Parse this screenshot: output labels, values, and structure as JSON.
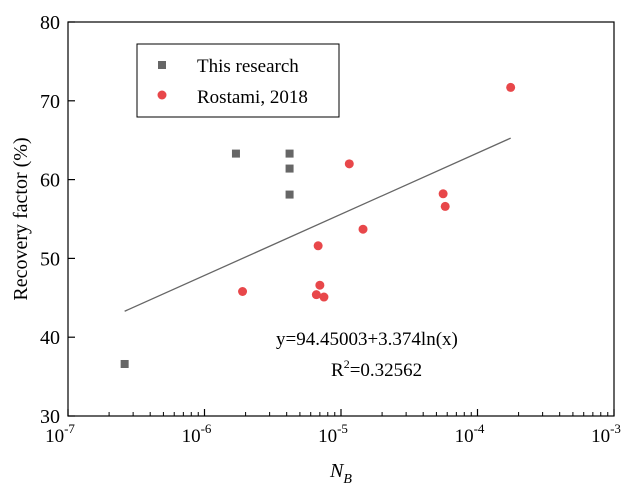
{
  "chart_data": {
    "type": "scatter",
    "xscale": "log",
    "xlim": [
      1e-07,
      0.001
    ],
    "ylim": [
      30,
      80
    ],
    "xlabel_main": "N",
    "xlabel_sub": "B",
    "ylabel": "Recovery factor (%)",
    "x_ticks": [
      {
        "value": 1e-07,
        "base": "10",
        "exp": "-7"
      },
      {
        "value": 1e-06,
        "base": "10",
        "exp": "-6"
      },
      {
        "value": 1e-05,
        "base": "10",
        "exp": "-5"
      },
      {
        "value": 0.0001,
        "base": "10",
        "exp": "-4"
      },
      {
        "value": 0.001,
        "base": "10",
        "exp": "-3"
      }
    ],
    "y_ticks": [
      {
        "value": 30,
        "label": "30"
      },
      {
        "value": 40,
        "label": "40"
      },
      {
        "value": 50,
        "label": "50"
      },
      {
        "value": 60,
        "label": "60"
      },
      {
        "value": 70,
        "label": "70"
      },
      {
        "value": 80,
        "label": "80"
      }
    ],
    "grid": false,
    "legend_position": "top-left",
    "series": [
      {
        "name": "This research",
        "marker": "square",
        "color": "#666666",
        "points": [
          {
            "x": 2.6e-07,
            "y": 36.6
          },
          {
            "x": 1.7e-06,
            "y": 63.3
          },
          {
            "x": 4.2e-06,
            "y": 63.3
          },
          {
            "x": 4.2e-06,
            "y": 61.4
          },
          {
            "x": 4.2e-06,
            "y": 58.1
          }
        ]
      },
      {
        "name": "Rostami, 2018",
        "marker": "circle",
        "color": "#e8474a",
        "points": [
          {
            "x": 1.9e-06,
            "y": 45.8
          },
          {
            "x": 6.6e-06,
            "y": 45.4
          },
          {
            "x": 7e-06,
            "y": 46.6
          },
          {
            "x": 7.5e-06,
            "y": 45.1
          },
          {
            "x": 6.8e-06,
            "y": 51.6
          },
          {
            "x": 1.15e-05,
            "y": 62.0
          },
          {
            "x": 1.45e-05,
            "y": 53.7
          },
          {
            "x": 5.6e-05,
            "y": 58.2
          },
          {
            "x": 5.8e-05,
            "y": 56.6
          },
          {
            "x": 0.000175,
            "y": 71.7
          }
        ]
      }
    ],
    "fit": {
      "color": "#666666",
      "x_range": [
        2.6e-07,
        0.000175
      ],
      "a": 94.45003,
      "b": 3.374
    },
    "annotation": {
      "equation": "y=94.45003+3.374ln(x)",
      "r2_prefix": "R",
      "r2_exp": "2",
      "r2_value": "=0.32562"
    }
  }
}
